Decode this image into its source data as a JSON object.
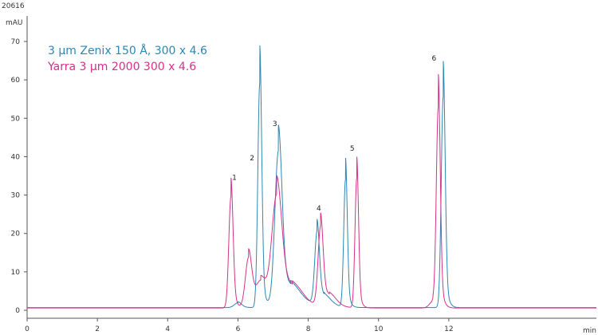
{
  "corner_id": "20616",
  "chart_data": {
    "type": "line",
    "xlabel": "min",
    "ylabel": "mAU",
    "xlim": [
      0,
      16.2
    ],
    "ylim": [
      -2,
      73
    ],
    "x_ticks": [
      0,
      2,
      4,
      6,
      8,
      10,
      12
    ],
    "y_ticks": [
      0,
      10,
      20,
      30,
      40,
      50,
      60,
      70
    ],
    "x_tick_labels": [
      "0",
      "2",
      "4",
      "6",
      "8",
      "10",
      "12"
    ],
    "y_tick_labels": [
      "0",
      "10",
      "20",
      "30",
      "40",
      "50",
      "60",
      "70"
    ],
    "legend_position": "top-left",
    "series": [
      {
        "name": "3 µm Zenix 150 Å, 300 x 4.6",
        "color": "#2e86b3",
        "baseline": 0.7,
        "peaks": [
          {
            "t": 6.0,
            "h": 1.5,
            "w": 0.1
          },
          {
            "t": 6.62,
            "h": 68.5,
            "w": 0.055
          },
          {
            "t": 7.15,
            "h": 45.0,
            "w": 0.1
          },
          {
            "t": 7.5,
            "h": 6.0,
            "w": 0.3
          },
          {
            "t": 8.25,
            "h": 21.0,
            "w": 0.065
          },
          {
            "t": 8.45,
            "h": 3.0,
            "w": 0.2
          },
          {
            "t": 9.06,
            "h": 39.0,
            "w": 0.05
          },
          {
            "t": 11.84,
            "h": 64.5,
            "w": 0.055
          }
        ]
      },
      {
        "name": "Yarra 3 µm 2000 300 x 4.6",
        "color": "#d6308a",
        "baseline": 0.6,
        "peaks": [
          {
            "t": 5.8,
            "h": 34.0,
            "w": 0.06
          },
          {
            "t": 6.3,
            "h": 15.0,
            "w": 0.09
          },
          {
            "t": 6.65,
            "h": 8.0,
            "w": 0.15
          },
          {
            "t": 7.1,
            "h": 32.5,
            "w": 0.14
          },
          {
            "t": 7.55,
            "h": 6.0,
            "w": 0.3
          },
          {
            "t": 8.35,
            "h": 23.0,
            "w": 0.07
          },
          {
            "t": 8.6,
            "h": 3.5,
            "w": 0.2
          },
          {
            "t": 9.38,
            "h": 39.5,
            "w": 0.05
          },
          {
            "t": 11.7,
            "h": 60.5,
            "w": 0.055
          },
          {
            "t": 11.55,
            "h": 2.0,
            "w": 0.1
          }
        ]
      }
    ],
    "peak_labels": [
      {
        "label": "1",
        "t": 5.9,
        "y": 34
      },
      {
        "label": "2",
        "t": 6.4,
        "y": 39
      },
      {
        "label": "3",
        "t": 7.05,
        "y": 48
      },
      {
        "label": "4",
        "t": 8.3,
        "y": 26
      },
      {
        "label": "5",
        "t": 9.25,
        "y": 41.5
      },
      {
        "label": "6",
        "t": 11.58,
        "y": 65
      }
    ]
  }
}
